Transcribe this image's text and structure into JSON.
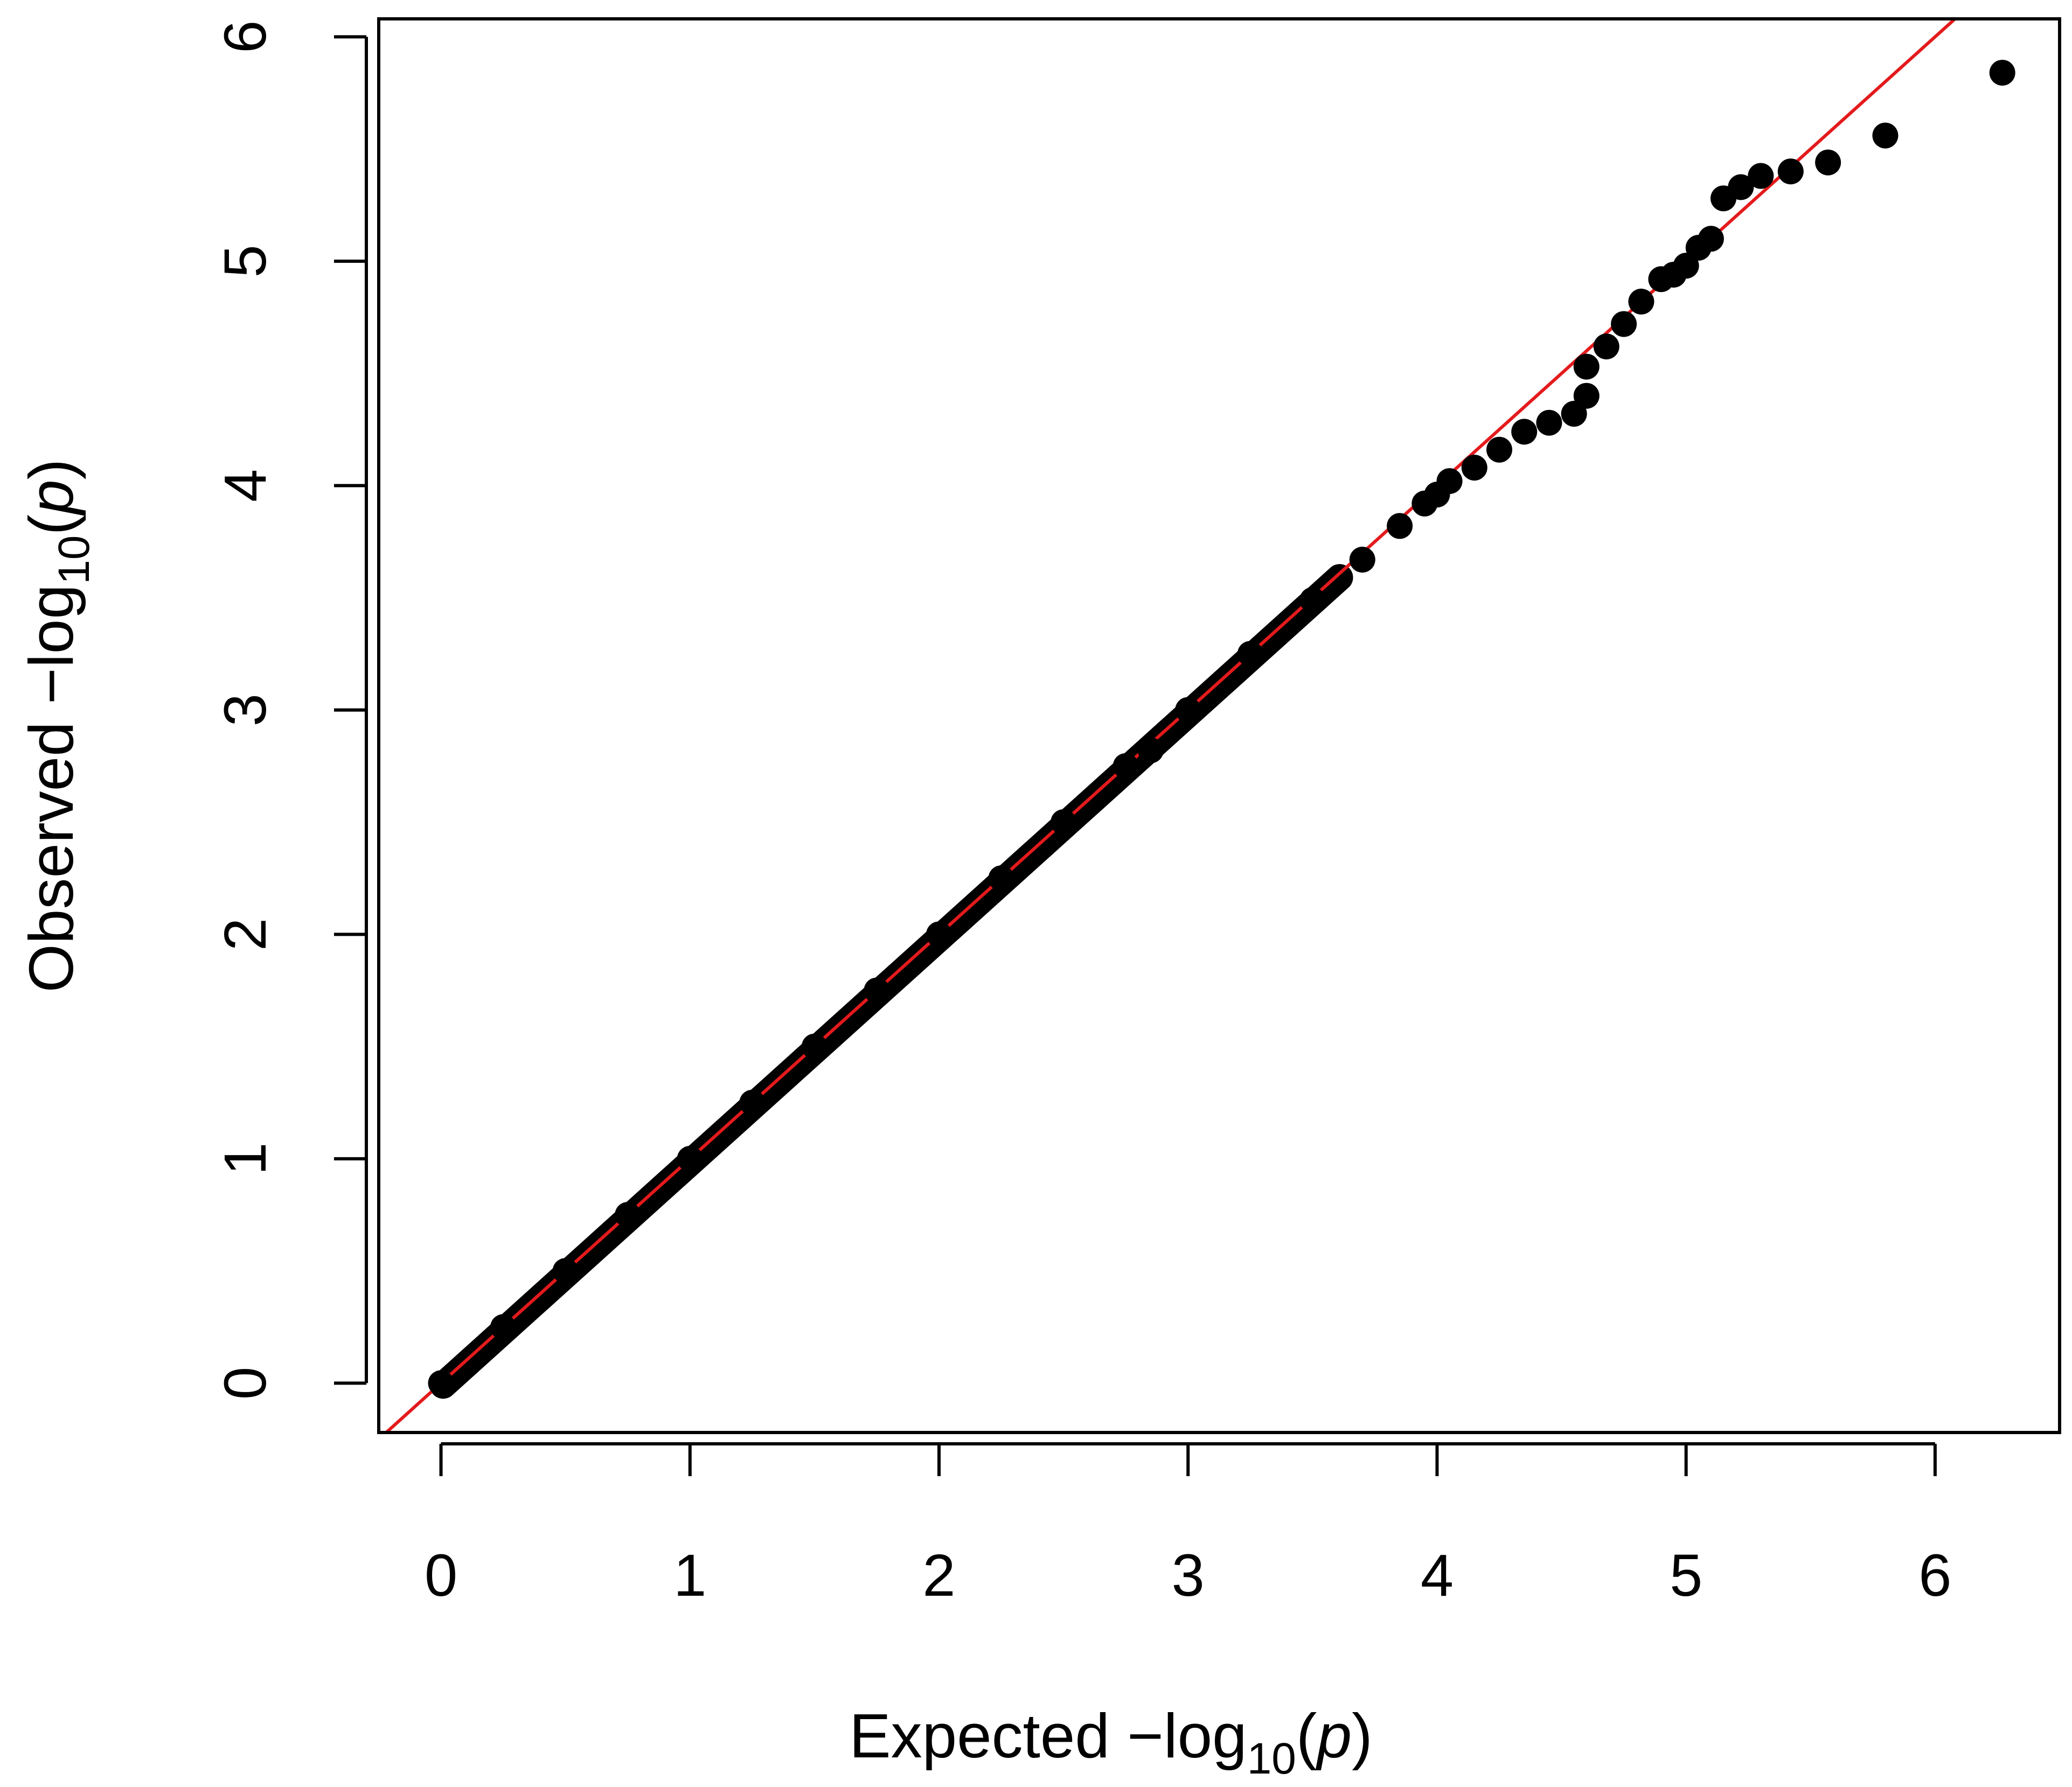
{
  "chart_data": {
    "type": "scatter",
    "title": "",
    "xlabel": {
      "prefix": "Expected  −log",
      "subscript": "10",
      "open": "(",
      "var": "p",
      "close": ")"
    },
    "ylabel": {
      "prefix": "Observed  −log",
      "subscript": "10",
      "open": "(",
      "var": "p",
      "close": ")"
    },
    "xlim": [
      -0.25,
      6.5
    ],
    "ylim": [
      -0.22,
      6.08
    ],
    "xticks": [
      0,
      1,
      2,
      3,
      4,
      5,
      6
    ],
    "yticks": [
      0,
      1,
      2,
      3,
      4,
      5,
      6
    ],
    "xtick_labels": [
      "0",
      "1",
      "2",
      "3",
      "4",
      "5",
      "6"
    ],
    "ytick_labels": [
      "0",
      "1",
      "2",
      "3",
      "4",
      "5",
      "6"
    ],
    "grid": false,
    "legend": "none",
    "reference_line": {
      "slope": 1,
      "intercept": 0,
      "color": "#e41a1c"
    },
    "point_color": "#000000",
    "dense_band": {
      "x_start": 0.0,
      "x_end": 3.6,
      "note_points_overlap_reference_line": true
    },
    "points": [
      [
        0.0,
        0.0
      ],
      [
        0.25,
        0.25
      ],
      [
        0.5,
        0.5
      ],
      [
        0.75,
        0.75
      ],
      [
        1.0,
        1.0
      ],
      [
        1.25,
        1.25
      ],
      [
        1.5,
        1.5
      ],
      [
        1.75,
        1.75
      ],
      [
        2.0,
        2.0
      ],
      [
        2.25,
        2.25
      ],
      [
        2.5,
        2.5
      ],
      [
        2.75,
        2.75
      ],
      [
        2.85,
        2.82
      ],
      [
        3.0,
        3.0
      ],
      [
        3.25,
        3.25
      ],
      [
        3.5,
        3.49
      ],
      [
        3.7,
        3.67
      ],
      [
        3.85,
        3.82
      ],
      [
        3.95,
        3.92
      ],
      [
        4.0,
        3.96
      ],
      [
        4.05,
        4.02
      ],
      [
        4.15,
        4.08
      ],
      [
        4.25,
        4.16
      ],
      [
        4.35,
        4.24
      ],
      [
        4.45,
        4.28
      ],
      [
        4.55,
        4.32
      ],
      [
        4.6,
        4.4
      ],
      [
        4.6,
        4.53
      ],
      [
        4.68,
        4.62
      ],
      [
        4.75,
        4.72
      ],
      [
        4.82,
        4.82
      ],
      [
        4.9,
        4.92
      ],
      [
        4.95,
        4.94
      ],
      [
        5.0,
        4.98
      ],
      [
        5.05,
        5.06
      ],
      [
        5.1,
        5.1
      ],
      [
        5.15,
        5.28
      ],
      [
        5.22,
        5.33
      ],
      [
        5.3,
        5.38
      ],
      [
        5.42,
        5.4
      ],
      [
        5.57,
        5.44
      ],
      [
        5.8,
        5.56
      ],
      [
        6.27,
        5.84
      ]
    ]
  }
}
